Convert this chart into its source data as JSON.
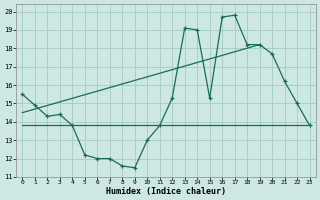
{
  "xlabel": "Humidex (Indice chaleur)",
  "background_color": "#cde8e2",
  "grid_color": "#aaceca",
  "line_color": "#1a6b5a",
  "xlim": [
    -0.5,
    23.5
  ],
  "ylim": [
    11,
    20.4
  ],
  "yticks": [
    11,
    12,
    13,
    14,
    15,
    16,
    17,
    18,
    19,
    20
  ],
  "xticks": [
    0,
    1,
    2,
    3,
    4,
    5,
    6,
    7,
    8,
    9,
    10,
    11,
    12,
    13,
    14,
    15,
    16,
    17,
    18,
    19,
    20,
    21,
    22,
    23
  ],
  "line1_x": [
    0,
    1,
    2,
    3,
    4,
    5,
    6,
    7,
    8,
    9,
    10,
    11,
    12,
    13,
    14,
    15,
    16,
    17,
    18,
    19,
    20,
    21,
    22,
    23
  ],
  "line1_y": [
    15.5,
    14.9,
    14.3,
    14.4,
    13.8,
    12.2,
    12.0,
    12.0,
    11.6,
    11.5,
    13.0,
    13.8,
    15.3,
    19.1,
    19.0,
    15.3,
    19.7,
    19.8,
    18.2,
    18.2,
    17.7,
    16.2,
    15.0,
    13.8
  ],
  "line2_x": [
    0,
    23
  ],
  "line2_y": [
    13.8,
    13.8
  ],
  "line3_x": [
    0,
    19
  ],
  "line3_y": [
    14.5,
    18.2
  ]
}
